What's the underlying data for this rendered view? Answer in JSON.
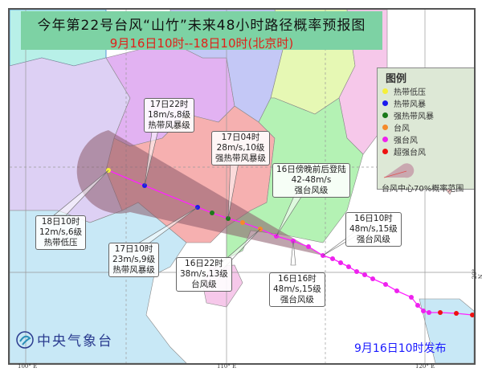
{
  "header": {
    "title": "今年第22号台风“山竹”未来48小时路径概率预报图",
    "subtitle": "9月16日10时--18日10时(北京时)"
  },
  "legend": {
    "title": "图例",
    "items": [
      {
        "label": "热带低压",
        "color": "#f5f03a"
      },
      {
        "label": "热带风暴",
        "color": "#1a1aee"
      },
      {
        "label": "强热带风暴",
        "color": "#1a7a1a"
      },
      {
        "label": "台风",
        "color": "#f58a2a"
      },
      {
        "label": "强台风",
        "color": "#ee22ee"
      },
      {
        "label": "超强台风",
        "color": "#ee1111"
      }
    ],
    "cone_label": "台风中心70%概率范围"
  },
  "forecast_labels": {
    "t18_10": {
      "time": "18日10时",
      "wind": "12m/s,6级",
      "level": "热带低压"
    },
    "t17_22": {
      "time": "17日22时",
      "wind": "18m/s,8级",
      "level": "热带风暴级"
    },
    "t17_10": {
      "time": "17日10时",
      "wind": "23m/s,9级",
      "level": "热带风暴级"
    },
    "t17_04": {
      "time": "17日04时",
      "wind": "28m/s,10级",
      "level": "强热带风暴级"
    },
    "t16_22": {
      "time": "16日22时",
      "wind": "38m/s,13级",
      "level": "台风级"
    },
    "landfall": {
      "time": "16日傍晚前后登陆",
      "wind": "42-48m/s",
      "level": "强台风级"
    },
    "t16_16": {
      "time": "16日16时",
      "wind": "48m/s,15级",
      "level": "强台风级"
    },
    "t16_10": {
      "time": "16日10时",
      "wind": "48m/s,15级",
      "level": "强台风级"
    }
  },
  "axes": {
    "lon": [
      "100° E",
      "110° E",
      "120° E"
    ],
    "lat": [
      "20° N"
    ]
  },
  "footer": {
    "agency": "中央气象台",
    "issued": "9月16日10时发布"
  },
  "colors": {
    "track": "#ff22ff",
    "cone": "#8a5a6a",
    "title_bg": "#7dd2a4",
    "subtitle": "#e0201a",
    "issued": "#1a1aff"
  }
}
